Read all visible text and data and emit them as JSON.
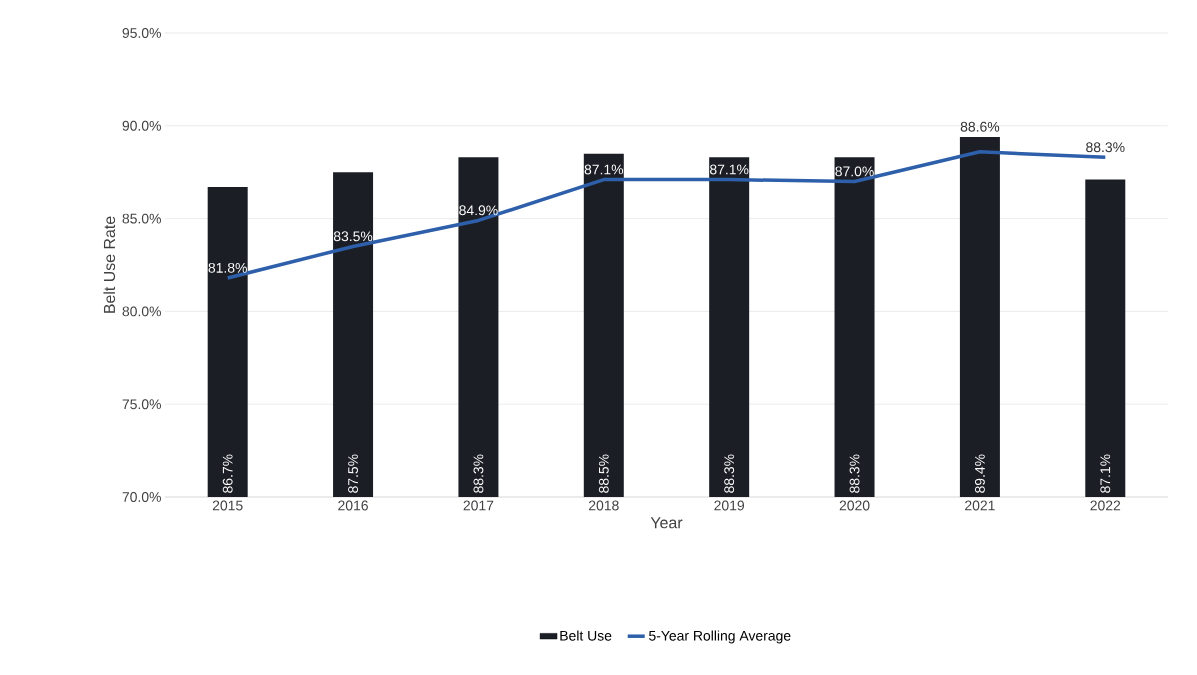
{
  "chart_data": {
    "type": "bar",
    "xlabel": "Year",
    "ylabel": "Belt Use Rate",
    "categories": [
      "2015",
      "2016",
      "2017",
      "2018",
      "2019",
      "2020",
      "2021",
      "2022"
    ],
    "series": [
      {
        "name": "Belt Use",
        "color": "#1c1e26",
        "values": [
          86.7,
          87.5,
          88.3,
          88.5,
          88.3,
          88.3,
          89.4,
          87.1
        ],
        "value_labels": [
          "86.7%",
          "87.5%",
          "88.3%",
          "88.5%",
          "88.3%",
          "88.3%",
          "89.4%",
          "87.1%"
        ]
      },
      {
        "name": "5-Year Rolling Average",
        "type": "line",
        "color": "#2e5faa",
        "values": [
          81.8,
          83.5,
          84.9,
          87.1,
          87.1,
          87.0,
          88.6,
          88.3
        ],
        "value_labels": [
          "81.8%",
          "83.5%",
          "84.9%",
          "87.1%",
          "87.1%",
          "87.0%",
          "88.6%",
          "88.3%"
        ]
      }
    ],
    "ylim": [
      70,
      95
    ],
    "yticks": [
      {
        "value": 70,
        "label": "70.0%"
      },
      {
        "value": 75,
        "label": "75.0%"
      },
      {
        "value": 80,
        "label": "80.0%"
      },
      {
        "value": 85,
        "label": "85.0%"
      },
      {
        "value": 90,
        "label": "90.0%"
      },
      {
        "value": 95,
        "label": "95.0%"
      }
    ],
    "grid": "y",
    "legend": "bottom"
  }
}
